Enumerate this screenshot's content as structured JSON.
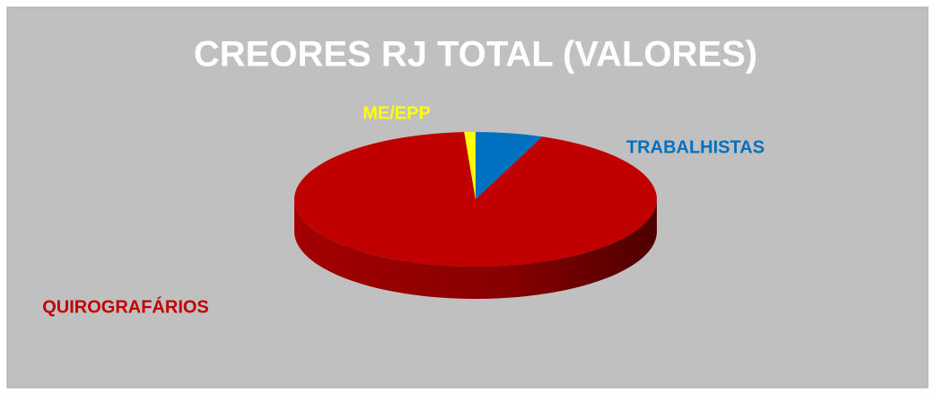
{
  "chart_data": {
    "type": "pie",
    "title": "CREORES RJ TOTAL (VALORES)",
    "categories": [
      "TRABALHISTAS",
      "QUIROGRAFÁRIOS",
      "ME/EPP"
    ],
    "values": [
      6,
      93,
      1
    ],
    "colors": [
      "#0070c0",
      "#c00000",
      "#ffff00"
    ]
  }
}
